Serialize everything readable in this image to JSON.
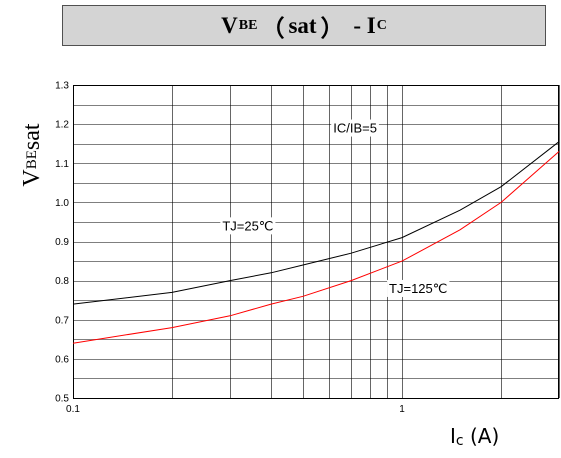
{
  "title": {
    "v": "V",
    "v_sub": "BE",
    "paren_open": "（",
    "sat": "sat",
    "paren_close": "）",
    "dash": " - ",
    "i": "I",
    "i_sub": "C"
  },
  "axis_titles": {
    "y_main": "V",
    "y_sub": "BE",
    "y_suffix": "sat",
    "x_main": "I",
    "x_sub": "c",
    "x_unit": " (A)"
  },
  "colors": {
    "series_25": "#000000",
    "series_125": "#ff0000",
    "grid": "#000000"
  },
  "chart_data": {
    "type": "line",
    "title": "VBE（sat） - IC",
    "xlabel": "Ic (A)",
    "ylabel": "VBEsat",
    "x_scale": "log",
    "xlim": [
      0.1,
      3
    ],
    "ylim": [
      0.5,
      1.3
    ],
    "grid": true,
    "x_ticks": [
      {
        "value": 0.1,
        "label": "0.1"
      },
      {
        "value": 1,
        "label": "1"
      }
    ],
    "y_ticks": [
      {
        "value": 0.5,
        "label": "0.5"
      },
      {
        "value": 0.6,
        "label": "0.6"
      },
      {
        "value": 0.7,
        "label": "0.7"
      },
      {
        "value": 0.8,
        "label": "0.8"
      },
      {
        "value": 0.9,
        "label": "0.9"
      },
      {
        "value": 1.0,
        "label": "1.0"
      },
      {
        "value": 1.1,
        "label": "1.1"
      },
      {
        "value": 1.2,
        "label": "1.2"
      },
      {
        "value": 1.3,
        "label": "1.3"
      }
    ],
    "annotations": [
      {
        "text": "IC/IB=5",
        "x": 0.72,
        "y": 1.19
      },
      {
        "text": "TJ=25℃",
        "x": 0.34,
        "y": 0.94
      },
      {
        "text": "TJ=125℃",
        "x": 1.12,
        "y": 0.78
      }
    ],
    "series": [
      {
        "color": "#000000",
        "x": [
          0.1,
          0.2,
          0.3,
          0.4,
          0.5,
          0.7,
          1.0,
          1.5,
          2.0,
          3.0
        ],
        "y": [
          0.74,
          0.77,
          0.8,
          0.82,
          0.84,
          0.87,
          0.91,
          0.98,
          1.04,
          1.155
        ]
      },
      {
        "color": "#ff0000",
        "x": [
          0.1,
          0.2,
          0.3,
          0.4,
          0.5,
          0.7,
          1.0,
          1.5,
          2.0,
          3.0
        ],
        "y": [
          0.64,
          0.68,
          0.71,
          0.74,
          0.76,
          0.8,
          0.85,
          0.93,
          1.0,
          1.13
        ]
      }
    ]
  }
}
